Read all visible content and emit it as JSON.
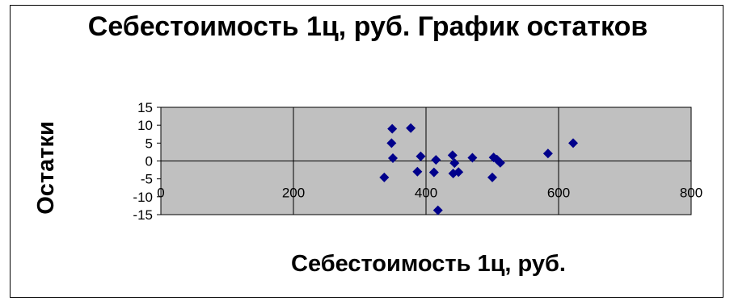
{
  "chart_data": {
    "type": "scatter",
    "title": "Себестоимость 1ц, руб. График остатков",
    "xlabel": "Себестоимость 1ц, руб.",
    "ylabel": "Остатки",
    "xlim": [
      0,
      800
    ],
    "ylim": [
      -15,
      15
    ],
    "x_ticks": [
      "0",
      "200",
      "400",
      "600",
      "800"
    ],
    "y_ticks": [
      "15",
      "10",
      "5",
      "0",
      "-5",
      "-10",
      "-15"
    ],
    "grid": "vertical",
    "legend": "none",
    "colors": {
      "plot_area": "#c0c0c0",
      "marker": "#00008b",
      "axis": "#000000",
      "grid": "#000000"
    },
    "points": [
      {
        "x": 337,
        "y": -4.6
      },
      {
        "x": 349,
        "y": 9.0
      },
      {
        "x": 348,
        "y": 5.0
      },
      {
        "x": 350,
        "y": 0.8
      },
      {
        "x": 377,
        "y": 9.2
      },
      {
        "x": 387,
        "y": -3.0
      },
      {
        "x": 392,
        "y": 1.3
      },
      {
        "x": 412,
        "y": -3.2
      },
      {
        "x": 415,
        "y": 0.3
      },
      {
        "x": 418,
        "y": -13.8
      },
      {
        "x": 440,
        "y": 1.6
      },
      {
        "x": 441,
        "y": -3.5
      },
      {
        "x": 443,
        "y": -0.6
      },
      {
        "x": 449,
        "y": -3.1
      },
      {
        "x": 470,
        "y": 0.9
      },
      {
        "x": 502,
        "y": 1.0
      },
      {
        "x": 500,
        "y": -4.6
      },
      {
        "x": 507,
        "y": 0.4
      },
      {
        "x": 512,
        "y": -0.5
      },
      {
        "x": 584,
        "y": 2.1
      },
      {
        "x": 622,
        "y": 5.0
      }
    ]
  }
}
